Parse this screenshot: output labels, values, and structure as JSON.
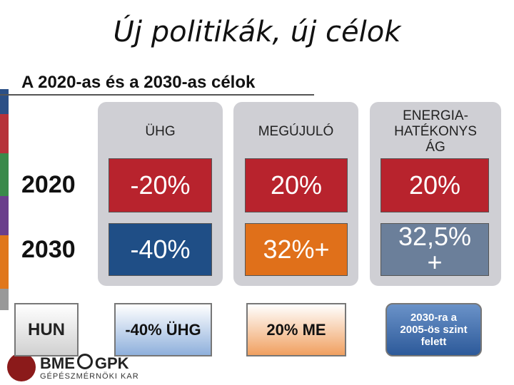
{
  "header": {
    "title": "Új politikák, új célok",
    "subtitle": "A 2020-as és a 2030-as célok"
  },
  "table": {
    "columns": [
      [
        "ÜHG"
      ],
      [
        "MEGÚJULÓ"
      ],
      [
        "ENERGIA-",
        "HATÉKONYS",
        "ÁG"
      ]
    ],
    "rows": [
      {
        "label": "2020",
        "cells": [
          [
            "-20%"
          ],
          [
            "20%"
          ],
          [
            "20%"
          ]
        ]
      },
      {
        "label": "2030",
        "cells": [
          [
            "-40%"
          ],
          [
            "32%+"
          ],
          [
            "32,5%",
            "+"
          ]
        ]
      }
    ]
  },
  "hun": {
    "label": "HUN",
    "cells": [
      [
        "-40% ÜHG"
      ],
      [
        "20% ME"
      ],
      [
        "2030-ra a",
        "2005-ös szint",
        "felett"
      ]
    ]
  },
  "logo": {
    "name": "BME",
    "name2": "GPK",
    "subtitle": "GÉPÉSZMÉRNÖKI KAR"
  }
}
